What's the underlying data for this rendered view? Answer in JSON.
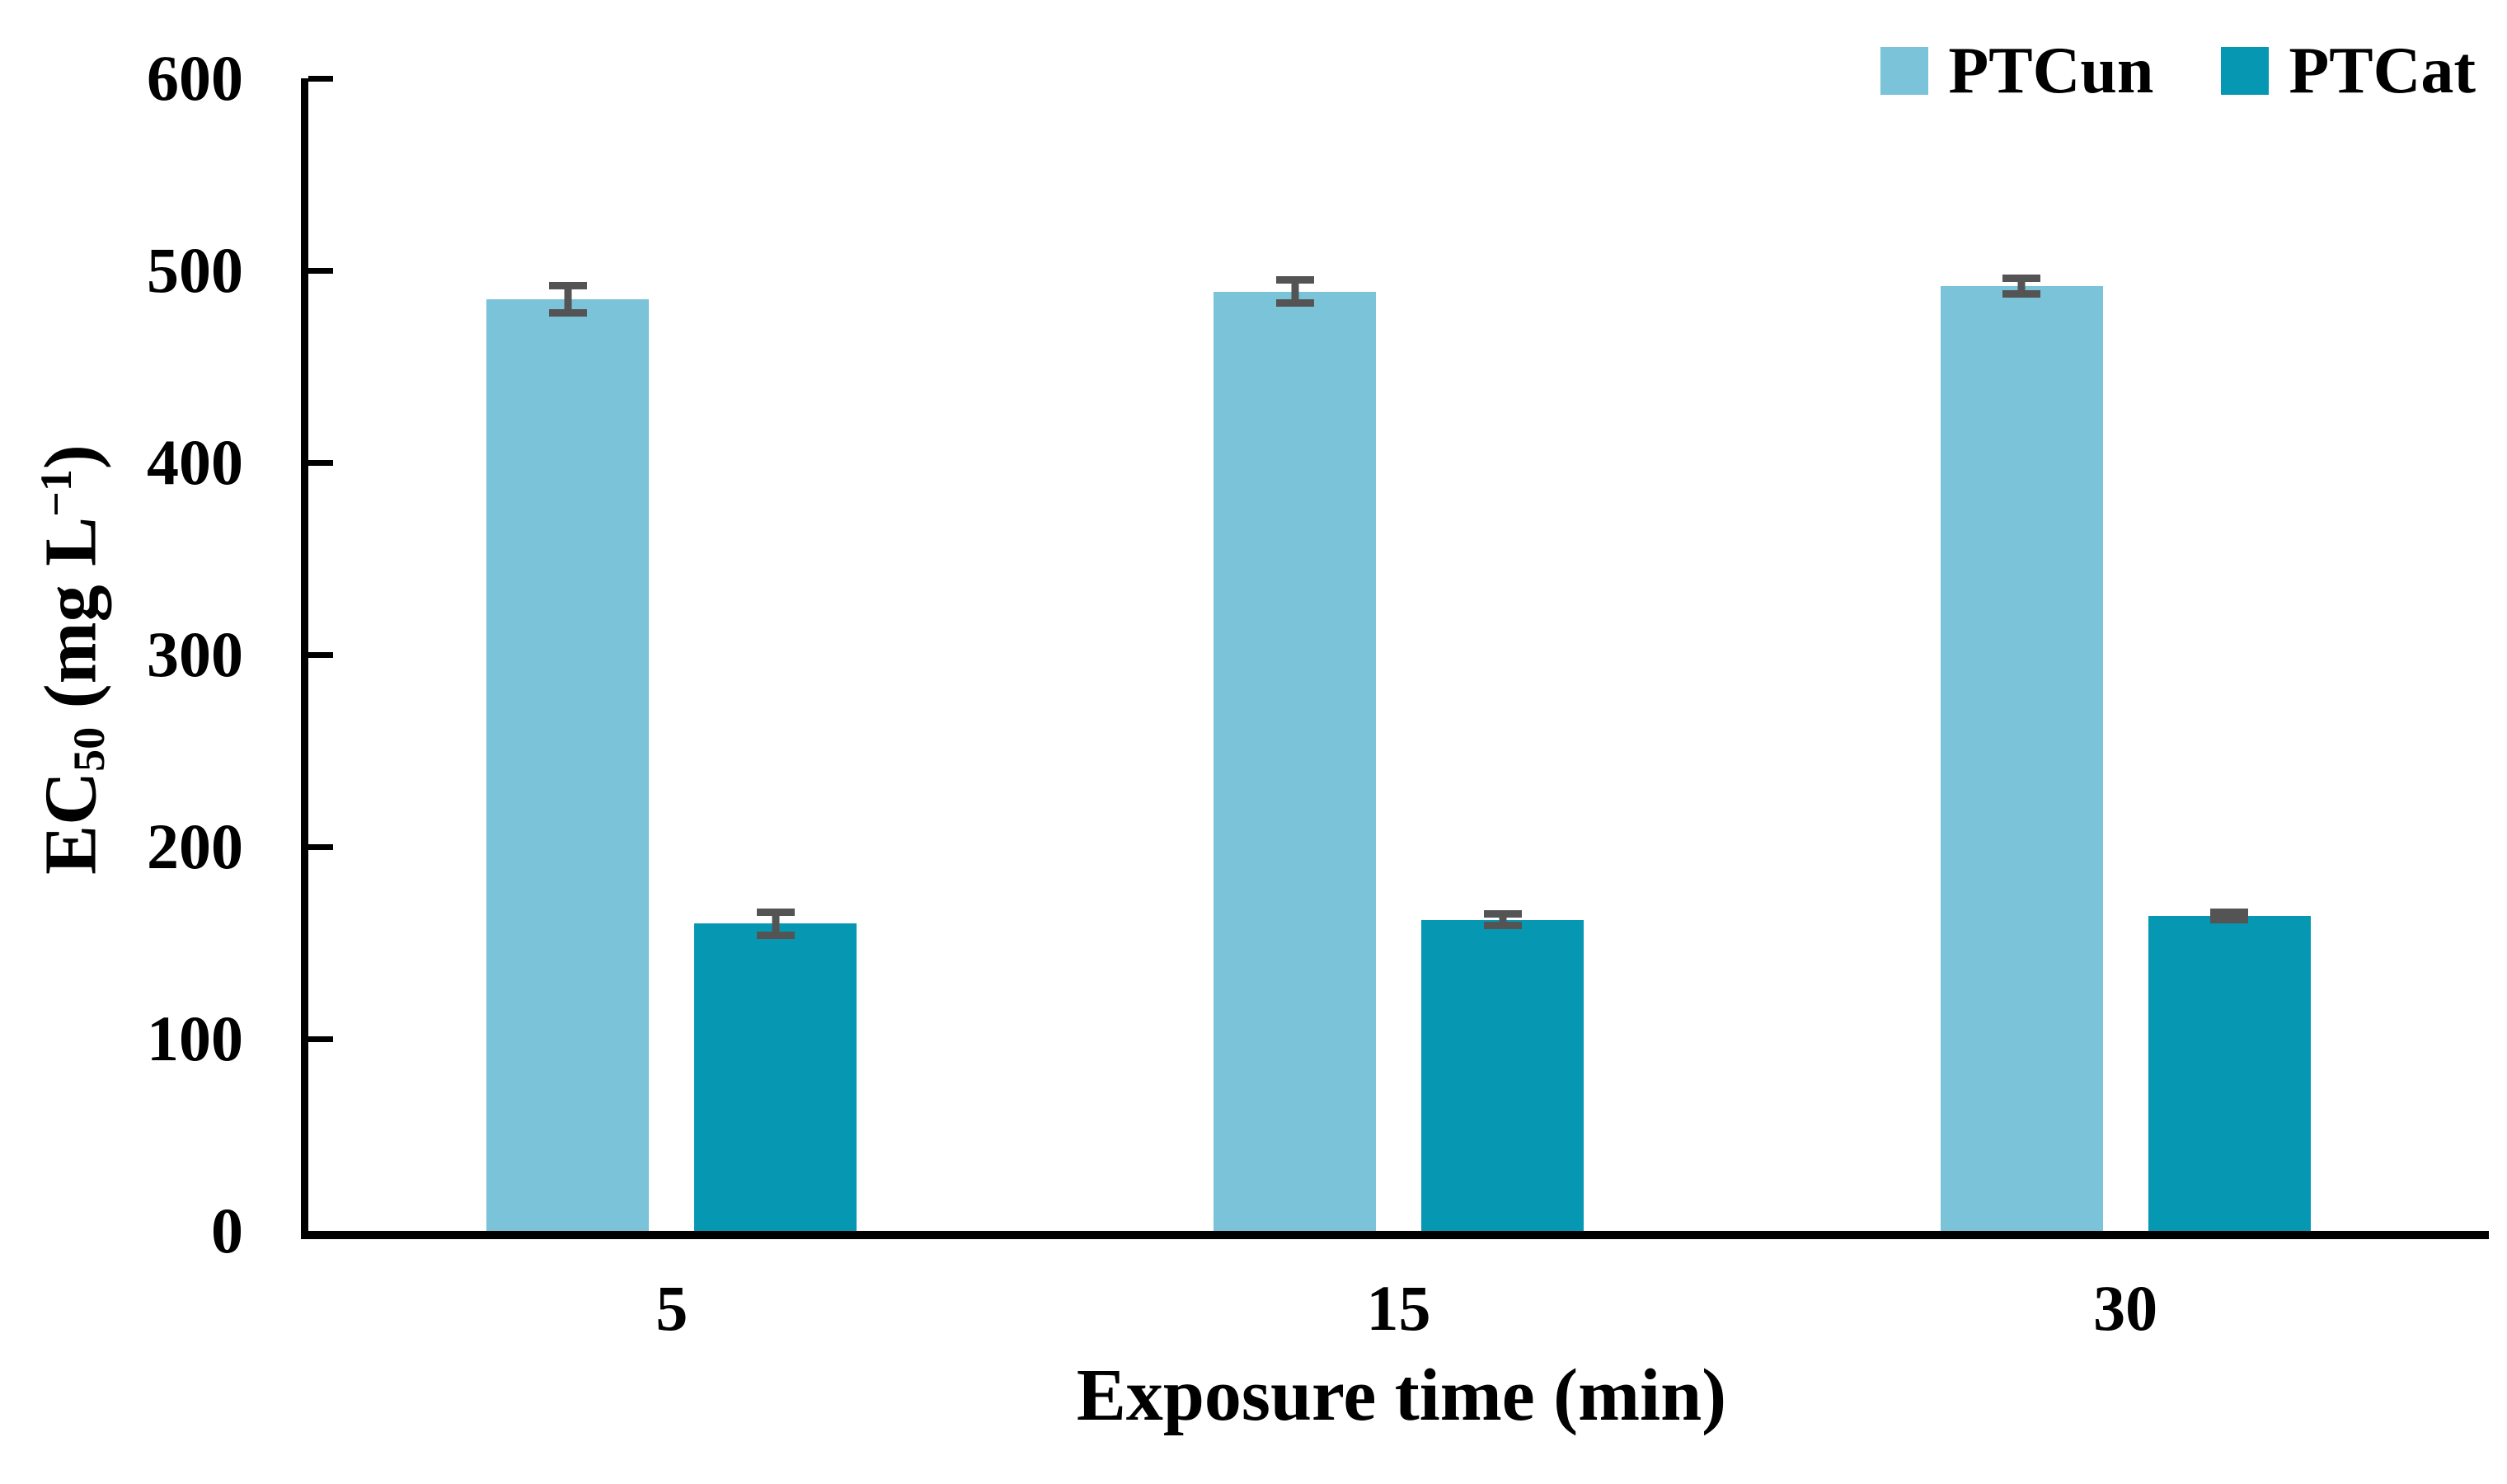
{
  "chart_data": {
    "type": "bar",
    "categories": [
      "5",
      "15",
      "30"
    ],
    "series": [
      {
        "name": "PTCun",
        "color": "#7AC3D8",
        "values": [
          485,
          489,
          492
        ],
        "errors": [
          9,
          8,
          6
        ]
      },
      {
        "name": "PTCat",
        "color": "#0697B2",
        "values": [
          160,
          162,
          164
        ],
        "errors": [
          8,
          5,
          4
        ]
      }
    ],
    "title": "",
    "xlabel": "Exposure time (min)",
    "ylabel_text": "EC50 (mg L-1)",
    "ylabel_parts": {
      "base1": "EC",
      "sub": "50",
      "base2": " (mg L",
      "sup": "−1",
      "base3": ")"
    },
    "ylim": [
      0,
      600
    ],
    "yticks": [
      0,
      100,
      200,
      300,
      400,
      500,
      600
    ],
    "grid": false,
    "legend_position": "top-right",
    "error_bar_color": "#545454",
    "axis_color": "#000000",
    "background_color": "#ffffff"
  }
}
